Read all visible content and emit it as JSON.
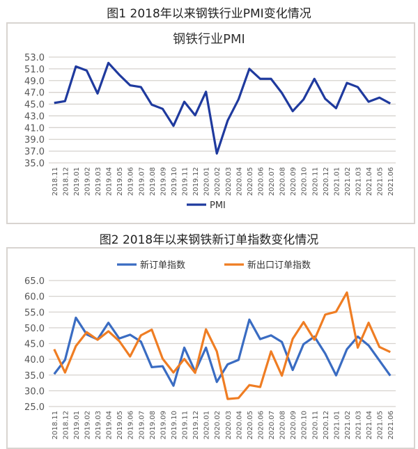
{
  "figure1_title": "图1 2018年以来钢铁行业PMI变化情况",
  "figure2_title": "图2  2018年以来钢铁新订单指数变化情况",
  "chart_data": [
    {
      "type": "line",
      "title": "钢铁行业PMI",
      "ylim": [
        35,
        53
      ],
      "yticks": [
        35.0,
        37.0,
        39.0,
        41.0,
        43.0,
        45.0,
        47.0,
        49.0,
        51.0,
        53.0
      ],
      "legend": "bottom",
      "grid": true,
      "categories": [
        "2018.11",
        "2018.12",
        "2019.01",
        "2019.02",
        "2019.03",
        "2019.04",
        "2019.05",
        "2019.06",
        "2019.07",
        "2019.08",
        "2019.09",
        "2019.10",
        "2019.11",
        "2019.12",
        "2020.01",
        "2020.02",
        "2020.03",
        "2020.04",
        "2020.05",
        "2020.06",
        "2020.07",
        "2020.08",
        "2020.09",
        "2020.10",
        "2020.11",
        "2020.12",
        "2021.01",
        "2021.02",
        "2021.03",
        "2021.04",
        "2021.05",
        "2021.06"
      ],
      "series": [
        {
          "name": "PMI",
          "color": "#1f3a9e",
          "values": [
            45.2,
            45.5,
            51.4,
            50.7,
            46.8,
            52.0,
            50.0,
            48.2,
            47.9,
            44.9,
            44.2,
            41.3,
            45.4,
            43.1,
            47.1,
            36.6,
            42.2,
            45.8,
            51.0,
            49.3,
            49.3,
            46.9,
            43.8,
            45.8,
            49.3,
            45.9,
            44.3,
            48.6,
            47.9,
            45.4,
            46.1,
            45.1
          ]
        }
      ]
    },
    {
      "type": "line",
      "title": "",
      "ylim": [
        25,
        65
      ],
      "yticks": [
        25.0,
        30.0,
        35.0,
        40.0,
        45.0,
        50.0,
        55.0,
        60.0,
        65.0
      ],
      "legend": "top",
      "grid": true,
      "categories": [
        "2018.11",
        "2018.12",
        "2019.01",
        "2019.02",
        "2019.03",
        "2019.04",
        "2019.05",
        "2019.06",
        "2019.07",
        "2019.08",
        "2019.09",
        "2019.10",
        "2019.11",
        "2019.12",
        "2020.01",
        "2020.02",
        "2020.03",
        "2020.04",
        "2020.05",
        "2020.06",
        "2020.07",
        "2020.08",
        "2020.09",
        "2020.10",
        "2020.11",
        "2020.12",
        "2021.01",
        "2021.02",
        "2021.03",
        "2021.04",
        "2021.05",
        "2021.06"
      ],
      "series": [
        {
          "name": "新订单指数",
          "color": "#3a6cc2",
          "values": [
            35.3,
            39.8,
            53.2,
            47.9,
            46.3,
            51.6,
            46.6,
            47.8,
            45.6,
            37.5,
            37.8,
            31.6,
            43.7,
            36.1,
            43.7,
            32.8,
            38.4,
            39.8,
            52.6,
            46.4,
            47.6,
            45.5,
            36.6,
            44.8,
            47.2,
            41.8,
            34.9,
            43.2,
            47.2,
            44.4,
            39.6,
            34.8
          ]
        },
        {
          "name": "新出口订单指数",
          "color": "#ef7d23",
          "values": [
            43.2,
            35.8,
            44.2,
            48.6,
            46.2,
            48.9,
            45.8,
            40.9,
            47.6,
            49.4,
            40.2,
            35.8,
            40.1,
            35.7,
            49.5,
            42.5,
            27.4,
            27.7,
            31.8,
            31.2,
            42.5,
            34.8,
            46.5,
            51.8,
            46.2,
            54.2,
            55.1,
            61.2,
            43.7,
            51.6,
            43.9,
            42.3
          ]
        }
      ]
    }
  ]
}
